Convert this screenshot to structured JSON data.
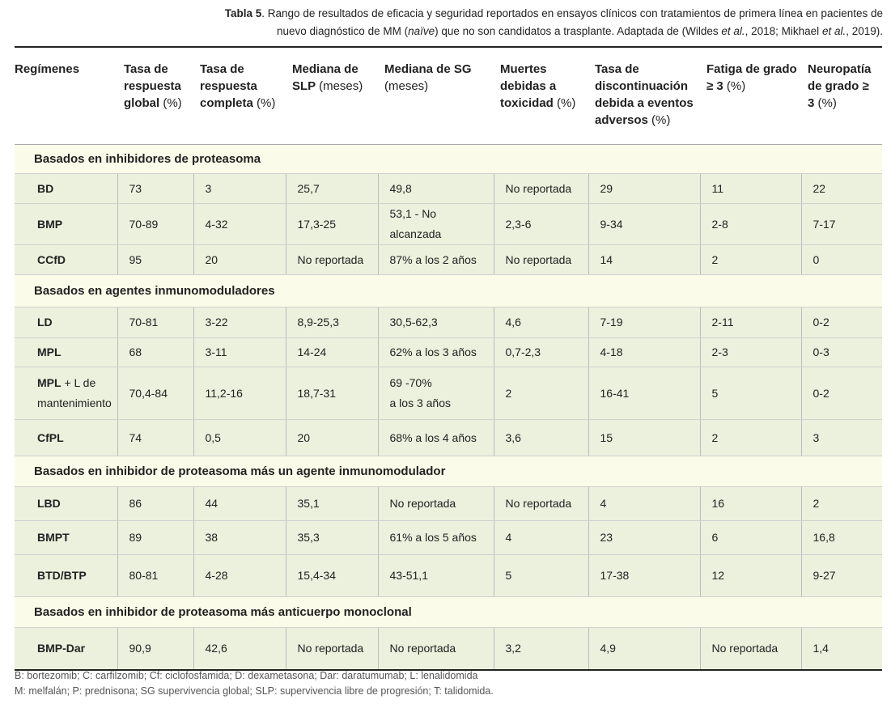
{
  "caption": {
    "label": "Tabla 5",
    "parts": [
      ". Rango de resultados de eficacia y seguridad reportados en ensayos clínicos con tratamientos de primera línea en pacientes de nuevo diagnóstico de MM (",
      "naïve",
      ") que no son candidatos a trasplante. Adaptada de (Wildes ",
      "et al.",
      ", 2018; Mikhael ",
      "et al.",
      ", 2019)."
    ]
  },
  "headers": [
    {
      "title": "Regímenes"
    },
    {
      "title": "Tasa de respuesta global",
      "unit": "(%)"
    },
    {
      "title": "Tasa de respuesta completa",
      "unit": "(%)"
    },
    {
      "title": "Mediana de SLP",
      "unit": "(meses)"
    },
    {
      "title": "Mediana de SG",
      "unit": "(meses)"
    },
    {
      "title": "Muertes debidas a toxicidad",
      "unit": "(%)"
    },
    {
      "title": "Tasa de discontinuación debida a eventos adversos",
      "unit": "(%)"
    },
    {
      "title": "Fatiga de grado ≥ 3",
      "unit": "(%)"
    },
    {
      "title": "Neuropatía de grado ≥ 3",
      "unit": "(%)"
    }
  ],
  "sections": [
    {
      "title": "Basados en inhibidores de proteasoma",
      "rows": [
        {
          "regimen": "BD",
          "values": [
            "73",
            "3",
            "25,7",
            "49,8",
            "No reportada",
            "29",
            "11",
            "22"
          ]
        },
        {
          "regimen": "BMP",
          "values": [
            "70-89",
            "4-32",
            "17,3-25",
            "53,1 - No alcanzada",
            "2,3-6",
            "9-34",
            "2-8",
            "7-17"
          ]
        },
        {
          "regimen": "CCfD",
          "values": [
            "95",
            "20",
            "No reportada",
            "87% a los 2 años",
            "No reportada",
            "14",
            "2",
            "0"
          ]
        }
      ]
    },
    {
      "title": "Basados en agentes inmunomoduladores",
      "rows": [
        {
          "regimen": "LD",
          "values": [
            "70-81",
            "3-22",
            "8,9-25,3",
            "30,5-62,3",
            "4,6",
            "7-19",
            "2-11",
            "0-2"
          ]
        },
        {
          "regimen": "MPL",
          "values": [
            "68",
            "3-11",
            "14-24",
            "62% a los 3 años",
            "0,7-2,3",
            "4-18",
            "2-3",
            "0-3"
          ]
        },
        {
          "regimen": "MPL",
          "regimen_note": "+ L de mantenimiento",
          "values": [
            "70,4-84",
            "11,2-16",
            "18,7-31",
            "69 -70%\na los 3 años",
            "2",
            "16-41",
            "5",
            "0-2"
          ]
        },
        {
          "regimen": "CfPL",
          "values": [
            "74",
            "0,5",
            "20",
            "68% a los 4 años",
            "3,6",
            "15",
            "2",
            "3"
          ]
        }
      ]
    },
    {
      "title": "Basados en inhibidor de proteasoma más un agente inmunomodulador",
      "rows": [
        {
          "regimen": "LBD",
          "values": [
            "86",
            "44",
            "35,1",
            "No reportada",
            "No reportada",
            "4",
            "16",
            "2"
          ]
        },
        {
          "regimen": "BMPT",
          "values": [
            "89",
            "38",
            "35,3",
            "61% a los 5 años",
            "4",
            "23",
            "6",
            "16,8"
          ]
        },
        {
          "regimen": "BTD/BTP",
          "values": [
            "80-81",
            "4-28",
            "15,4-34",
            "43-51,1",
            "5",
            "17-38",
            "12",
            "9-27"
          ]
        }
      ]
    },
    {
      "title": "Basados en inhibidor de proteasoma más anticuerpo monoclonal",
      "rows": [
        {
          "regimen": "BMP-Dar",
          "values": [
            "90,9",
            "42,6",
            "No reportada",
            "No reportada",
            "3,2",
            "4,9",
            "No reportada",
            "1,4"
          ]
        }
      ]
    }
  ],
  "footnotes": [
    "B: bortezomib; C: carfilzomib; Cf: ciclofosfamida; D: dexametasona; Dar: daratumumab; L: lenalidomida",
    "M: melfalán; P: prednisona; SG supervivencia global; SLP: supervivencia libre de progresión; T: talidomida."
  ]
}
